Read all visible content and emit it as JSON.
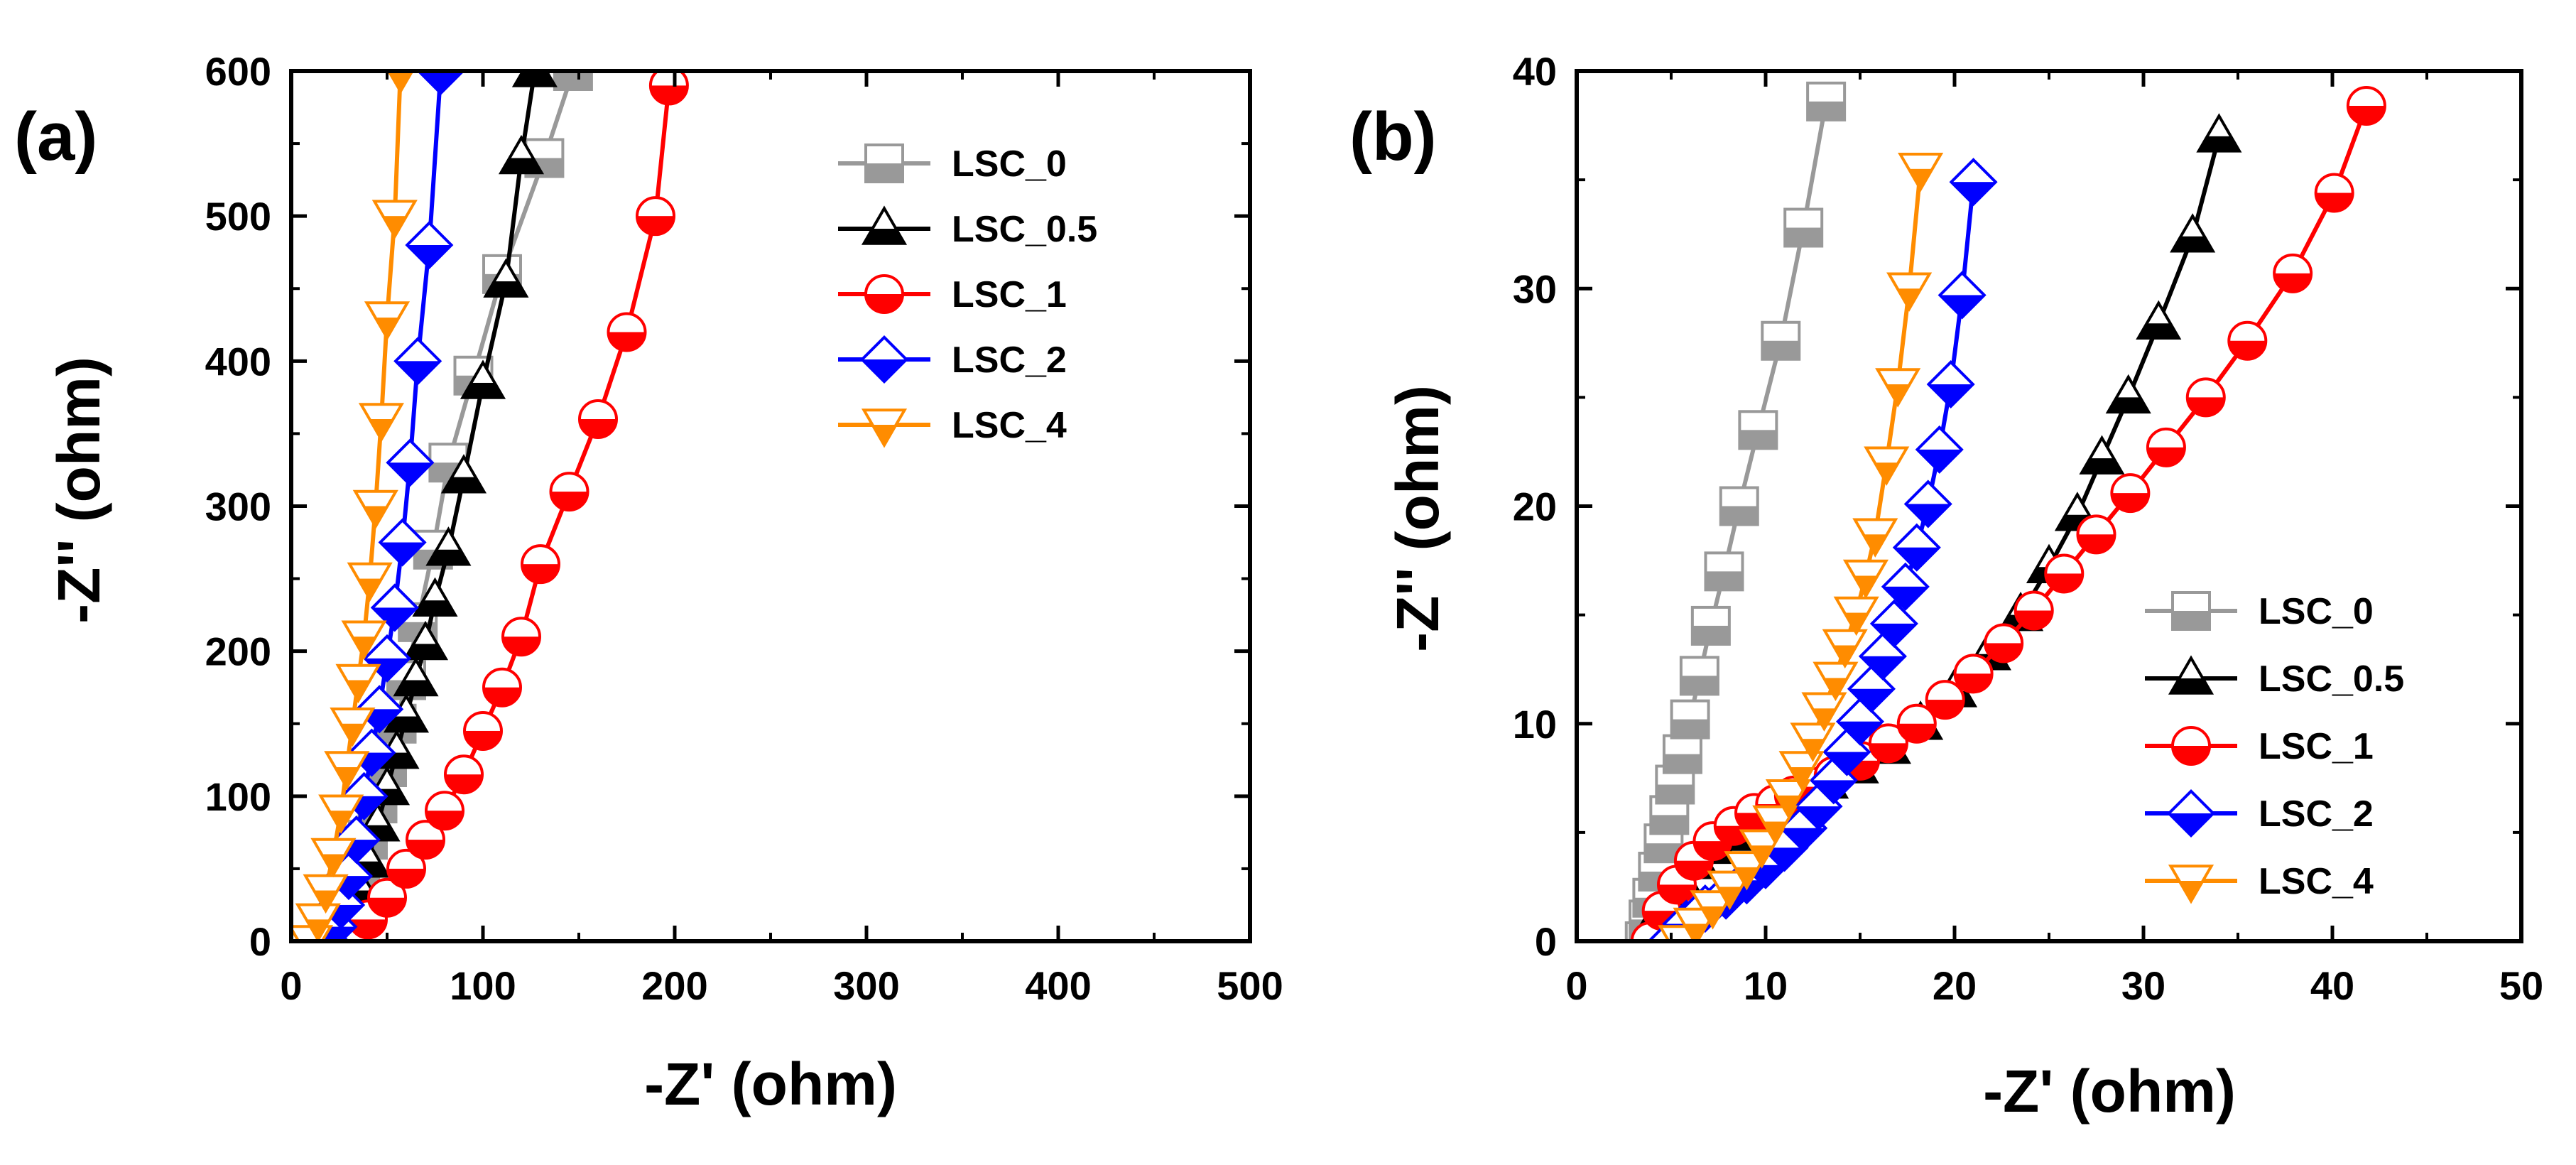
{
  "chart_data": [
    {
      "type": "scatter",
      "panel_label": "(a)",
      "xlabel": "-Z' (ohm)",
      "ylabel": "-Z'' (ohm)",
      "xlim": [
        0,
        500
      ],
      "ylim": [
        0,
        600
      ],
      "xticks": [
        "0",
        "100",
        "200",
        "300",
        "400",
        "500"
      ],
      "yticks": [
        "0",
        "100",
        "200",
        "300",
        "400",
        "500",
        "600"
      ],
      "legend_position": "top-right",
      "series": [
        {
          "name": "LSC_0",
          "color": "#999999",
          "marker": "square-bottom-filled",
          "x": [
            20,
            24,
            28,
            32,
            36,
            40,
            45,
            50,
            55,
            60,
            66,
            74,
            82,
            95,
            110,
            132,
            147
          ],
          "y": [
            0,
            10,
            20,
            35,
            50,
            70,
            95,
            120,
            150,
            180,
            220,
            270,
            330,
            390,
            460,
            540,
            600
          ]
        },
        {
          "name": "LSC_0.5",
          "color": "#000000",
          "marker": "triangle-up-bottom-filled",
          "x": [
            28,
            32,
            36,
            40,
            45,
            50,
            55,
            60,
            65,
            70,
            75,
            82,
            90,
            100,
            112,
            120,
            127
          ],
          "y": [
            0,
            15,
            35,
            55,
            80,
            105,
            130,
            155,
            180,
            205,
            235,
            270,
            320,
            385,
            455,
            540,
            600
          ]
        },
        {
          "name": "LSC_1",
          "color": "#ff0000",
          "marker": "circle-bottom-filled",
          "x": [
            30,
            40,
            50,
            60,
            70,
            80,
            90,
            100,
            110,
            120,
            130,
            145,
            160,
            175,
            190,
            197
          ],
          "y": [
            0,
            15,
            30,
            50,
            70,
            90,
            115,
            145,
            175,
            210,
            260,
            310,
            360,
            420,
            500,
            590
          ]
        },
        {
          "name": "LSC_2",
          "color": "#0000ff",
          "marker": "diamond-bottom-filled",
          "x": [
            18,
            22,
            26,
            30,
            34,
            38,
            42,
            46,
            50,
            54,
            58,
            62,
            66,
            72,
            78
          ],
          "y": [
            0,
            10,
            25,
            45,
            70,
            100,
            130,
            160,
            195,
            230,
            275,
            330,
            400,
            480,
            600
          ]
        },
        {
          "name": "LSC_4",
          "color": "#ff8c00",
          "marker": "triangle-down-bottom-filled",
          "x": [
            10,
            14,
            18,
            22,
            26,
            29,
            32,
            35,
            38,
            41,
            44,
            47,
            50,
            54,
            57
          ],
          "y": [
            0,
            15,
            35,
            60,
            90,
            120,
            150,
            180,
            210,
            250,
            300,
            360,
            430,
            500,
            600
          ]
        }
      ]
    },
    {
      "type": "scatter",
      "panel_label": "(b)",
      "xlabel": "-Z' (ohm)",
      "ylabel": "-Z'' (ohm)",
      "xlim": [
        0,
        50
      ],
      "ylim": [
        0,
        40
      ],
      "xticks": [
        "0",
        "10",
        "20",
        "30",
        "40",
        "50"
      ],
      "yticks": [
        "0",
        "10",
        "20",
        "30",
        "40"
      ],
      "legend_position": "bottom-right",
      "series": [
        {
          "name": "LSC_0",
          "color": "#999999",
          "marker": "square-bottom-filled",
          "x": [
            3.6,
            3.8,
            4.0,
            4.3,
            4.6,
            4.9,
            5.2,
            5.6,
            6.0,
            6.5,
            7.1,
            7.8,
            8.6,
            9.6,
            10.8,
            12.0,
            13.2
          ],
          "y": [
            0,
            1.0,
            2.0,
            3.2,
            4.5,
            5.8,
            7.2,
            8.6,
            10.2,
            12.2,
            14.5,
            17.0,
            20.0,
            23.5,
            27.6,
            32.8,
            38.6
          ]
        },
        {
          "name": "LSC_0.5",
          "color": "#000000",
          "marker": "triangle-up-bottom-filled",
          "x": [
            3.8,
            4.2,
            4.8,
            5.5,
            6.4,
            7.4,
            8.5,
            9.6,
            10.6,
            11.8,
            13.2,
            14.8,
            16.5,
            18.2,
            20.0,
            21.8,
            23.5,
            25.0,
            26.5,
            27.8,
            29.2,
            30.8,
            32.6,
            34.0
          ],
          "y": [
            0,
            1.0,
            1.9,
            2.8,
            3.6,
            4.3,
            4.9,
            5.5,
            6.0,
            6.6,
            7.3,
            8.0,
            8.9,
            10.0,
            11.5,
            13.2,
            15.0,
            17.2,
            19.6,
            22.2,
            25.0,
            28.4,
            32.4,
            37.0
          ]
        },
        {
          "name": "LSC_1",
          "color": "#ff0000",
          "marker": "circle-bottom-filled",
          "x": [
            3.9,
            4.5,
            5.3,
            6.2,
            7.2,
            8.3,
            9.4,
            10.5,
            11.5,
            12.5,
            13.6,
            15.0,
            16.5,
            18.0,
            19.5,
            21.0,
            22.6,
            24.2,
            25.8,
            27.5,
            29.3,
            31.2,
            33.3,
            35.5,
            37.9,
            40.1,
            41.8
          ],
          "y": [
            0,
            1.4,
            2.6,
            3.7,
            4.6,
            5.3,
            5.9,
            6.3,
            6.7,
            7.1,
            7.6,
            8.3,
            9.1,
            10.0,
            11.1,
            12.3,
            13.7,
            15.2,
            16.9,
            18.7,
            20.6,
            22.7,
            25.0,
            27.6,
            30.7,
            34.4,
            38.4
          ]
        },
        {
          "name": "LSC_2",
          "color": "#0000ff",
          "marker": "diamond-bottom-filled",
          "x": [
            5.0,
            5.8,
            6.8,
            7.9,
            9.0,
            10.0,
            11.0,
            12.0,
            12.8,
            13.6,
            14.3,
            15.0,
            15.6,
            16.2,
            16.8,
            17.4,
            18.0,
            18.6,
            19.2,
            19.8,
            20.4,
            21.0
          ],
          "y": [
            0,
            0.8,
            1.5,
            2.1,
            2.8,
            3.5,
            4.3,
            5.2,
            6.2,
            7.4,
            8.7,
            10.1,
            11.6,
            13.1,
            14.6,
            16.3,
            18.1,
            20.1,
            22.6,
            25.6,
            29.7,
            34.9
          ]
        },
        {
          "name": "LSC_4",
          "color": "#ff8c00",
          "marker": "triangle-down-bottom-filled",
          "x": [
            5.5,
            6.3,
            7.2,
            8.1,
            9.0,
            9.8,
            10.5,
            11.2,
            11.9,
            12.5,
            13.1,
            13.7,
            14.2,
            14.8,
            15.3,
            15.8,
            16.4,
            17.0,
            17.6,
            18.2
          ],
          "y": [
            0,
            0.8,
            1.6,
            2.5,
            3.4,
            4.4,
            5.5,
            6.7,
            8.0,
            9.3,
            10.7,
            12.1,
            13.6,
            15.1,
            16.8,
            18.7,
            22.0,
            25.6,
            30.0,
            35.5
          ]
        }
      ]
    }
  ]
}
